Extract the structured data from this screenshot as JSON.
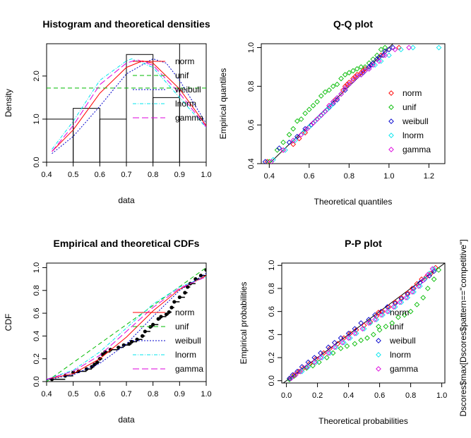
{
  "ylabel_right": "Dscores$max[Dscores$pattern==\"competitive\"]",
  "colors": {
    "norm": "#ff0000",
    "unif": "#00bb00",
    "weibull": "#0000cc",
    "lnorm": "#00e5ee",
    "gamma": "#dd00dd"
  },
  "chart_data": [
    {
      "type": "histogram",
      "title": "Histogram and theoretical densities",
      "xlabel": "data",
      "ylabel": "Density",
      "xlim": [
        0.4,
        1.0
      ],
      "ylim": [
        0,
        2.75
      ],
      "xticks": [
        "0.4",
        "0.5",
        "0.6",
        "0.7",
        "0.8",
        "0.9",
        "1.0"
      ],
      "yticks": [
        "0.0",
        "1.0",
        "2.0"
      ],
      "bins": [
        {
          "x0": 0.4,
          "x1": 0.5,
          "density": 1.0
        },
        {
          "x0": 0.5,
          "x1": 0.6,
          "density": 1.25
        },
        {
          "x0": 0.6,
          "x1": 0.7,
          "density": 1.0
        },
        {
          "x0": 0.7,
          "x1": 0.8,
          "density": 2.5
        },
        {
          "x0": 0.8,
          "x1": 0.9,
          "density": 1.5
        },
        {
          "x0": 0.9,
          "x1": 1.0,
          "density": 2.75
        }
      ],
      "series": [
        {
          "name": "norm",
          "color": "#ff0000",
          "dash": "",
          "x": [
            0.42,
            0.5,
            0.6,
            0.7,
            0.76,
            0.8,
            0.9,
            1.0
          ],
          "y": [
            0.25,
            0.75,
            1.6,
            2.2,
            2.35,
            2.3,
            1.7,
            0.85
          ]
        },
        {
          "name": "unif",
          "color": "#00bb00",
          "dash": "6 4",
          "x": [
            0.4,
            1.0
          ],
          "y": [
            1.72,
            1.72
          ]
        },
        {
          "name": "weibull",
          "color": "#0000cc",
          "dash": "2 2",
          "x": [
            0.42,
            0.5,
            0.6,
            0.7,
            0.8,
            0.85,
            0.9,
            1.0
          ],
          "y": [
            0.2,
            0.6,
            1.3,
            2.05,
            2.4,
            2.3,
            1.9,
            0.9
          ]
        },
        {
          "name": "lnorm",
          "color": "#00e5ee",
          "dash": "5 2 1 2",
          "x": [
            0.42,
            0.5,
            0.6,
            0.7,
            0.72,
            0.8,
            0.9,
            1.0
          ],
          "y": [
            0.3,
            0.95,
            1.9,
            2.35,
            2.4,
            2.2,
            1.5,
            0.8
          ]
        },
        {
          "name": "gamma",
          "color": "#dd00dd",
          "dash": "9 4",
          "x": [
            0.42,
            0.5,
            0.6,
            0.7,
            0.74,
            0.8,
            0.9,
            1.0
          ],
          "y": [
            0.25,
            0.85,
            1.8,
            2.3,
            2.38,
            2.25,
            1.6,
            0.82
          ]
        }
      ],
      "legend": [
        "norm",
        "unif",
        "weibull",
        "lnorm",
        "gamma"
      ],
      "legend_position": "top-right"
    },
    {
      "type": "scatter",
      "title": "Q-Q plot",
      "xlabel": "Theoretical quantiles",
      "ylabel": "Empirical quantiles",
      "xlim": [
        0.36,
        1.28
      ],
      "ylim": [
        0.4,
        1.02
      ],
      "xticks": [
        "0.4",
        "0.6",
        "0.8",
        "1.0",
        "1.2"
      ],
      "yticks": [
        "0.4",
        "0.6",
        "0.8",
        "1.0"
      ],
      "reference_line": {
        "x": [
          0.36,
          1.02
        ],
        "y": [
          0.36,
          1.02
        ]
      },
      "series": [
        {
          "name": "norm",
          "color": "#ff0000",
          "x": [
            0.39,
            0.47,
            0.52,
            0.55,
            0.58,
            0.6,
            0.62,
            0.64,
            0.66,
            0.67,
            0.69,
            0.7,
            0.72,
            0.73,
            0.74,
            0.76,
            0.77,
            0.78,
            0.79,
            0.8,
            0.82,
            0.83,
            0.84,
            0.86,
            0.87,
            0.88,
            0.9,
            0.92,
            0.94,
            0.96,
            1.0,
            1.05
          ],
          "y": [
            0.41,
            0.47,
            0.5,
            0.53,
            0.56,
            0.59,
            0.61,
            0.63,
            0.65,
            0.66,
            0.68,
            0.7,
            0.72,
            0.73,
            0.74,
            0.76,
            0.78,
            0.8,
            0.81,
            0.82,
            0.84,
            0.85,
            0.86,
            0.87,
            0.88,
            0.89,
            0.9,
            0.92,
            0.94,
            0.96,
            0.99,
            1.0
          ]
        },
        {
          "name": "unif",
          "color": "#00bb00",
          "x": [
            0.4,
            0.44,
            0.47,
            0.5,
            0.52,
            0.54,
            0.56,
            0.58,
            0.6,
            0.62,
            0.64,
            0.66,
            0.68,
            0.7,
            0.72,
            0.74,
            0.76,
            0.78,
            0.8,
            0.82,
            0.84,
            0.86,
            0.88,
            0.9,
            0.92,
            0.94,
            0.96,
            0.98
          ],
          "y": [
            0.41,
            0.47,
            0.51,
            0.55,
            0.58,
            0.62,
            0.63,
            0.66,
            0.68,
            0.7,
            0.72,
            0.75,
            0.77,
            0.78,
            0.8,
            0.81,
            0.84,
            0.86,
            0.87,
            0.88,
            0.89,
            0.9,
            0.9,
            0.92,
            0.94,
            0.96,
            0.99,
            1.0
          ]
        },
        {
          "name": "weibull",
          "color": "#0000cc",
          "x": [
            0.38,
            0.45,
            0.5,
            0.54,
            0.58,
            0.61,
            0.63,
            0.66,
            0.68,
            0.7,
            0.72,
            0.74,
            0.76,
            0.78,
            0.8,
            0.82,
            0.84,
            0.86,
            0.87,
            0.88,
            0.9,
            0.91,
            0.92,
            0.94,
            0.95,
            0.97,
            0.98,
            1.0,
            1.02
          ],
          "y": [
            0.41,
            0.48,
            0.51,
            0.54,
            0.58,
            0.6,
            0.62,
            0.65,
            0.67,
            0.69,
            0.71,
            0.73,
            0.76,
            0.78,
            0.81,
            0.83,
            0.85,
            0.86,
            0.87,
            0.88,
            0.9,
            0.91,
            0.92,
            0.94,
            0.95,
            0.96,
            0.98,
            0.99,
            1.0
          ]
        },
        {
          "name": "lnorm",
          "color": "#00e5ee",
          "x": [
            0.42,
            0.48,
            0.53,
            0.57,
            0.6,
            0.63,
            0.65,
            0.67,
            0.69,
            0.71,
            0.72,
            0.74,
            0.76,
            0.78,
            0.8,
            0.82,
            0.84,
            0.86,
            0.88,
            0.9,
            0.93,
            0.96,
            1.0,
            1.06,
            1.12,
            1.25
          ],
          "y": [
            0.42,
            0.47,
            0.52,
            0.56,
            0.59,
            0.62,
            0.64,
            0.66,
            0.68,
            0.7,
            0.72,
            0.74,
            0.76,
            0.79,
            0.81,
            0.83,
            0.85,
            0.86,
            0.88,
            0.89,
            0.91,
            0.93,
            0.96,
            0.99,
            1.0,
            1.0
          ]
        },
        {
          "name": "gamma",
          "color": "#dd00dd",
          "x": [
            0.41,
            0.47,
            0.52,
            0.56,
            0.59,
            0.62,
            0.64,
            0.66,
            0.68,
            0.7,
            0.72,
            0.74,
            0.76,
            0.78,
            0.8,
            0.82,
            0.84,
            0.86,
            0.88,
            0.9,
            0.92,
            0.95,
            0.98,
            1.03,
            1.1
          ],
          "y": [
            0.41,
            0.47,
            0.52,
            0.55,
            0.58,
            0.61,
            0.63,
            0.65,
            0.67,
            0.7,
            0.72,
            0.74,
            0.76,
            0.79,
            0.81,
            0.83,
            0.85,
            0.86,
            0.88,
            0.89,
            0.91,
            0.93,
            0.96,
            0.99,
            1.0
          ]
        }
      ],
      "legend": [
        "norm",
        "unif",
        "weibull",
        "lnorm",
        "gamma"
      ],
      "legend_position": "right"
    },
    {
      "type": "line",
      "title": "Empirical and theoretical CDFs",
      "xlabel": "data",
      "ylabel": "CDF",
      "xlim": [
        0.4,
        1.0
      ],
      "ylim": [
        0,
        1.04
      ],
      "xticks": [
        "0.4",
        "0.5",
        "0.6",
        "0.7",
        "0.8",
        "0.9",
        "1.0"
      ],
      "yticks": [
        "0.0",
        "0.2",
        "0.4",
        "0.6",
        "0.8",
        "1.0"
      ],
      "empirical": {
        "x": [
          0.42,
          0.47,
          0.5,
          0.52,
          0.55,
          0.57,
          0.58,
          0.59,
          0.6,
          0.61,
          0.62,
          0.64,
          0.67,
          0.69,
          0.71,
          0.72,
          0.74,
          0.76,
          0.77,
          0.79,
          0.8,
          0.82,
          0.83,
          0.85,
          0.86,
          0.87,
          0.88,
          0.9,
          0.92,
          0.93,
          0.94,
          0.96,
          0.98,
          1.0
        ],
        "y": [
          0.02,
          0.05,
          0.08,
          0.09,
          0.11,
          0.13,
          0.15,
          0.17,
          0.2,
          0.24,
          0.26,
          0.28,
          0.3,
          0.32,
          0.33,
          0.35,
          0.37,
          0.4,
          0.44,
          0.48,
          0.5,
          0.55,
          0.57,
          0.59,
          0.61,
          0.65,
          0.7,
          0.74,
          0.78,
          0.83,
          0.86,
          0.9,
          0.93,
          0.98
        ]
      },
      "series": [
        {
          "name": "norm",
          "color": "#ff0000",
          "dash": "",
          "x": [
            0.4,
            0.5,
            0.6,
            0.7,
            0.8,
            0.9,
            1.0
          ],
          "y": [
            0.02,
            0.07,
            0.2,
            0.39,
            0.62,
            0.81,
            0.93
          ]
        },
        {
          "name": "unif",
          "color": "#00bb00",
          "dash": "6 4",
          "x": [
            0.4,
            1.0
          ],
          "y": [
            0.0,
            1.0
          ]
        },
        {
          "name": "weibull",
          "color": "#0000cc",
          "dash": "2 2",
          "x": [
            0.4,
            0.5,
            0.6,
            0.7,
            0.8,
            0.9,
            1.0
          ],
          "y": [
            0.015,
            0.06,
            0.16,
            0.33,
            0.57,
            0.8,
            0.95
          ]
        },
        {
          "name": "lnorm",
          "color": "#00e5ee",
          "dash": "5 2 1 2",
          "x": [
            0.4,
            0.5,
            0.6,
            0.7,
            0.8,
            0.9,
            1.0
          ],
          "y": [
            0.02,
            0.1,
            0.26,
            0.47,
            0.68,
            0.83,
            0.92
          ]
        },
        {
          "name": "gamma",
          "color": "#dd00dd",
          "dash": "9 4",
          "x": [
            0.4,
            0.5,
            0.6,
            0.7,
            0.8,
            0.9,
            1.0
          ],
          "y": [
            0.02,
            0.09,
            0.23,
            0.44,
            0.65,
            0.82,
            0.92
          ]
        }
      ],
      "legend": [
        "norm",
        "unif",
        "weibull",
        "lnorm",
        "gamma"
      ],
      "legend_position": "bottom-right"
    },
    {
      "type": "scatter",
      "title": "P-P plot",
      "xlabel": "Theoretical probabilities",
      "ylabel": "Empirical probabilities",
      "xlim": [
        -0.03,
        1.02
      ],
      "ylim": [
        -0.02,
        1.02
      ],
      "xticks": [
        "0.0",
        "0.2",
        "0.4",
        "0.6",
        "0.8",
        "1.0"
      ],
      "yticks": [
        "0.0",
        "0.2",
        "0.4",
        "0.6",
        "0.8",
        "1.0"
      ],
      "reference_line": {
        "x": [
          -0.03,
          1.02
        ],
        "y": [
          -0.03,
          1.02
        ]
      },
      "series": [
        {
          "name": "norm",
          "color": "#ff0000",
          "x": [
            0.02,
            0.05,
            0.08,
            0.11,
            0.15,
            0.19,
            0.24,
            0.28,
            0.33,
            0.37,
            0.41,
            0.45,
            0.5,
            0.54,
            0.58,
            0.62,
            0.66,
            0.7,
            0.74,
            0.78,
            0.81,
            0.84,
            0.87,
            0.9,
            0.93,
            0.96
          ],
          "y": [
            0.02,
            0.05,
            0.08,
            0.11,
            0.15,
            0.19,
            0.24,
            0.28,
            0.32,
            0.37,
            0.41,
            0.44,
            0.48,
            0.51,
            0.56,
            0.6,
            0.64,
            0.68,
            0.72,
            0.76,
            0.8,
            0.84,
            0.88,
            0.9,
            0.93,
            0.98
          ]
        },
        {
          "name": "unif",
          "color": "#00bb00",
          "x": [
            0.02,
            0.05,
            0.09,
            0.13,
            0.17,
            0.21,
            0.26,
            0.3,
            0.35,
            0.39,
            0.44,
            0.48,
            0.52,
            0.56,
            0.6,
            0.64,
            0.68,
            0.72,
            0.76,
            0.8,
            0.84,
            0.88,
            0.91,
            0.95,
            0.98
          ],
          "y": [
            0.01,
            0.04,
            0.08,
            0.11,
            0.13,
            0.16,
            0.2,
            0.24,
            0.28,
            0.3,
            0.32,
            0.35,
            0.37,
            0.4,
            0.44,
            0.47,
            0.5,
            0.55,
            0.57,
            0.6,
            0.66,
            0.72,
            0.8,
            0.88,
            0.96
          ]
        },
        {
          "name": "weibull",
          "color": "#0000cc",
          "x": [
            0.02,
            0.04,
            0.07,
            0.1,
            0.14,
            0.18,
            0.22,
            0.27,
            0.31,
            0.35,
            0.4,
            0.44,
            0.48,
            0.53,
            0.57,
            0.61,
            0.65,
            0.7,
            0.74,
            0.78,
            0.82,
            0.86,
            0.89,
            0.92,
            0.95
          ],
          "y": [
            0.02,
            0.05,
            0.08,
            0.12,
            0.16,
            0.2,
            0.24,
            0.29,
            0.33,
            0.37,
            0.41,
            0.45,
            0.5,
            0.53,
            0.57,
            0.6,
            0.64,
            0.67,
            0.71,
            0.75,
            0.8,
            0.85,
            0.88,
            0.91,
            0.95
          ]
        },
        {
          "name": "lnorm",
          "color": "#00e5ee",
          "x": [
            0.03,
            0.06,
            0.1,
            0.14,
            0.19,
            0.23,
            0.28,
            0.32,
            0.37,
            0.41,
            0.45,
            0.5,
            0.54,
            0.58,
            0.62,
            0.66,
            0.7,
            0.74,
            0.78,
            0.82,
            0.86,
            0.89,
            0.92,
            0.95
          ],
          "y": [
            0.02,
            0.05,
            0.08,
            0.12,
            0.16,
            0.2,
            0.24,
            0.29,
            0.33,
            0.37,
            0.41,
            0.45,
            0.5,
            0.53,
            0.57,
            0.6,
            0.64,
            0.68,
            0.72,
            0.77,
            0.82,
            0.88,
            0.93,
            0.97
          ]
        },
        {
          "name": "gamma",
          "color": "#dd00dd",
          "x": [
            0.03,
            0.06,
            0.09,
            0.13,
            0.18,
            0.22,
            0.27,
            0.31,
            0.36,
            0.4,
            0.44,
            0.49,
            0.53,
            0.57,
            0.61,
            0.65,
            0.69,
            0.73,
            0.77,
            0.81,
            0.85,
            0.88,
            0.91,
            0.94
          ],
          "y": [
            0.02,
            0.05,
            0.08,
            0.12,
            0.16,
            0.2,
            0.24,
            0.29,
            0.33,
            0.37,
            0.41,
            0.45,
            0.5,
            0.53,
            0.57,
            0.6,
            0.64,
            0.68,
            0.72,
            0.77,
            0.82,
            0.87,
            0.92,
            0.97
          ]
        }
      ],
      "legend": [
        "norm",
        "unif",
        "weibull",
        "lnorm",
        "gamma"
      ],
      "legend_position": "bottom-right"
    }
  ]
}
